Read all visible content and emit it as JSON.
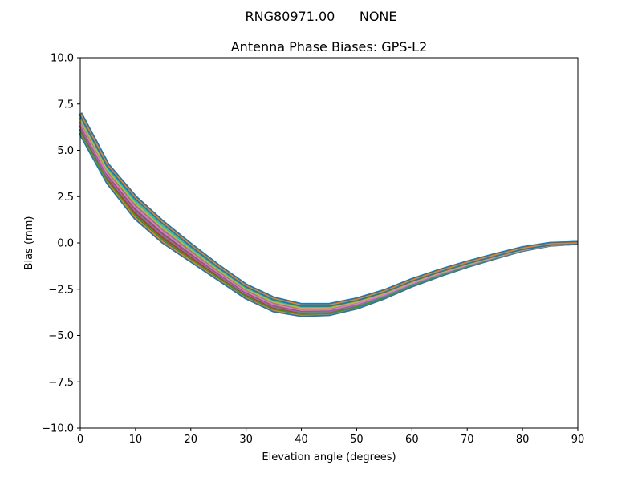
{
  "chart_data": {
    "type": "line",
    "suptitle": "RNG80971.00      NONE",
    "title": "Antenna Phase Biases: GPS-L2",
    "xlabel": "Elevation angle (degrees)",
    "ylabel": "Bias (mm)",
    "xlim": [
      0,
      90
    ],
    "ylim": [
      -10,
      10
    ],
    "xticks": [
      0,
      10,
      20,
      30,
      40,
      50,
      60,
      70,
      80,
      90
    ],
    "yticks": [
      -10,
      -7.5,
      -5,
      -2.5,
      0,
      2.5,
      5,
      7.5,
      10
    ],
    "ytick_labels": [
      "−10.0",
      "−7.5",
      "−5.0",
      "−2.5",
      "0.0",
      "2.5",
      "5.0",
      "7.5",
      "10.0"
    ],
    "grid": false,
    "colors": [
      "#1f77b4",
      "#ff7f0e",
      "#2ca02c",
      "#d62728",
      "#9467bd",
      "#8c564b",
      "#e377c2",
      "#7f7f7f",
      "#bcbd22",
      "#17becf"
    ],
    "x": [
      0,
      5,
      10,
      15,
      20,
      25,
      30,
      35,
      40,
      45,
      50,
      55,
      60,
      65,
      70,
      75,
      80,
      85,
      90
    ],
    "series": [
      {
        "values": [
          5.95,
          3.25,
          1.35,
          0.05,
          -0.95,
          -1.95,
          -2.95,
          -3.65,
          -3.9,
          -3.85,
          -3.5,
          -2.95,
          -2.3,
          -1.75,
          -1.25,
          -0.8,
          -0.38,
          -0.1,
          0
        ]
      },
      {
        "values": [
          6.16,
          3.44,
          1.57,
          0.26,
          -0.78,
          -1.81,
          -2.82,
          -3.52,
          -3.79,
          -3.75,
          -3.41,
          -2.88,
          -2.24,
          -1.7,
          -1.21,
          -0.77,
          -0.36,
          -0.09,
          0
        ]
      },
      {
        "values": [
          6.37,
          3.63,
          1.79,
          0.47,
          -0.61,
          -1.67,
          -2.69,
          -3.39,
          -3.68,
          -3.65,
          -3.32,
          -2.81,
          -2.18,
          -1.65,
          -1.17,
          -0.74,
          -0.34,
          -0.08,
          0
        ]
      },
      {
        "values": [
          6.58,
          3.82,
          2.01,
          0.68,
          -0.44,
          -1.53,
          -2.56,
          -3.26,
          -3.57,
          -3.55,
          -3.23,
          -2.74,
          -2.12,
          -1.6,
          -1.13,
          -0.71,
          -0.32,
          -0.07,
          0
        ]
      },
      {
        "values": [
          6.79,
          4.01,
          2.23,
          0.89,
          -0.27,
          -1.39,
          -2.43,
          -3.13,
          -3.46,
          -3.45,
          -3.14,
          -2.67,
          -2.06,
          -1.55,
          -1.09,
          -0.68,
          -0.3,
          -0.06,
          0
        ]
      },
      {
        "values": [
          7.0,
          4.2,
          2.45,
          1.1,
          -0.1,
          -1.25,
          -2.3,
          -3.0,
          -3.35,
          -3.35,
          -3.05,
          -2.6,
          -2.0,
          -1.5,
          -1.05,
          -0.65,
          -0.28,
          -0.05,
          0
        ]
      }
    ]
  }
}
